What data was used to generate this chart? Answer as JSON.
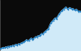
{
  "x": [
    0,
    1,
    2,
    3,
    4,
    5,
    6,
    7,
    8,
    9,
    10,
    11,
    12,
    13,
    14,
    15,
    16,
    17,
    18,
    19,
    20,
    21,
    22,
    23,
    24,
    25,
    26,
    27,
    28,
    29,
    30,
    31,
    32,
    33,
    34,
    35,
    36,
    37,
    38,
    39,
    40,
    41,
    42,
    43,
    44,
    45,
    46,
    47,
    48,
    49,
    50,
    51,
    52,
    53,
    54,
    55,
    56,
    57,
    58,
    59,
    60,
    61,
    62,
    63,
    64,
    65,
    66,
    67,
    68,
    69,
    70
  ],
  "y": [
    0.04,
    0.05,
    0.06,
    0.07,
    0.06,
    0.08,
    0.07,
    0.09,
    0.08,
    0.1,
    0.09,
    0.11,
    0.1,
    0.12,
    0.13,
    0.11,
    0.14,
    0.13,
    0.15,
    0.16,
    0.17,
    0.18,
    0.2,
    0.22,
    0.2,
    0.21,
    0.23,
    0.25,
    0.22,
    0.24,
    0.26,
    0.28,
    0.27,
    0.3,
    0.29,
    0.32,
    0.34,
    0.33,
    0.36,
    0.38,
    0.4,
    0.42,
    0.44,
    0.5,
    0.55,
    0.58,
    0.6,
    0.63,
    0.65,
    0.62,
    0.68,
    0.72,
    0.75,
    0.78,
    0.8,
    0.82,
    0.84,
    0.86,
    0.83,
    0.82,
    0.85,
    0.84,
    0.82,
    0.83,
    0.81,
    0.8,
    0.82,
    0.79,
    0.77,
    0.78,
    0.76
  ],
  "line_color": "#1a7abf",
  "fill_color": "#d0eaf8",
  "bg_top_color": "#0a0a0a",
  "marker_color": "#1a7abf",
  "spine_color": "#555555",
  "ylim": [
    0.0,
    1.0
  ],
  "marker_size": 1.2,
  "line_width": 0.7
}
